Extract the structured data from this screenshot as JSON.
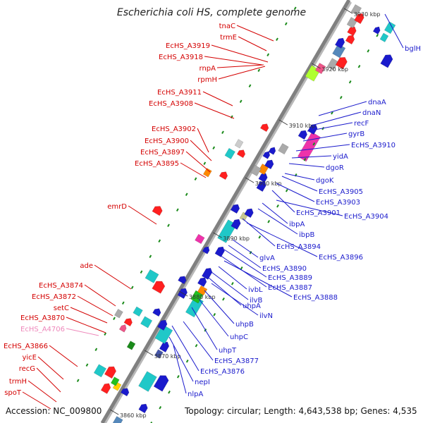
{
  "title": "Escherichia coli HS, complete genome",
  "accession": "Accession: NC_009800",
  "summary": "Topology: circular; Length: 4,643,538 bp; Genes: 4,535",
  "colors": {
    "forward_label": "#d40000",
    "reverse_label": "#1a1acc",
    "pseudo_label": "#ee88bb",
    "backbone": "#808080",
    "tick": "#1a8a1a"
  },
  "ticks": [
    "3860 kbp",
    "3870 kbp",
    "3880 kbp",
    "3890 kbp",
    "3900 kbp",
    "3910 kbp",
    "3920 kbp",
    "3930 kbp"
  ],
  "left_labels": [
    {
      "text": "tnaC",
      "style": "forward"
    },
    {
      "text": "trmE",
      "style": "forward"
    },
    {
      "text": "EcHS_A3919",
      "style": "forward"
    },
    {
      "text": "EcHS_A3918",
      "style": "forward"
    },
    {
      "text": "rnpA",
      "style": "forward"
    },
    {
      "text": "rpmH",
      "style": "forward"
    },
    {
      "text": "EcHS_A3911",
      "style": "forward"
    },
    {
      "text": "EcHS_A3908",
      "style": "forward"
    },
    {
      "text": "EcHS_A3902",
      "style": "forward"
    },
    {
      "text": "EcHS_A3900",
      "style": "forward"
    },
    {
      "text": "EcHS_A3897",
      "style": "forward"
    },
    {
      "text": "EcHS_A3895",
      "style": "forward"
    },
    {
      "text": "emrD",
      "style": "forward"
    },
    {
      "text": "ade",
      "style": "forward"
    },
    {
      "text": "EcHS_A3874",
      "style": "forward"
    },
    {
      "text": "EcHS_A3872",
      "style": "forward"
    },
    {
      "text": "setC",
      "style": "forward"
    },
    {
      "text": "EcHS_A3870",
      "style": "forward"
    },
    {
      "text": "EcHS_A4706",
      "style": "pseudo"
    },
    {
      "text": "EcHS_A3866",
      "style": "forward"
    },
    {
      "text": "yicE",
      "style": "forward"
    },
    {
      "text": "recG",
      "style": "forward"
    },
    {
      "text": "trmH",
      "style": "forward"
    },
    {
      "text": "spoT",
      "style": "forward"
    }
  ],
  "right_labels": [
    {
      "text": "bglH"
    },
    {
      "text": "dnaA"
    },
    {
      "text": "dnaN"
    },
    {
      "text": "recF"
    },
    {
      "text": "gyrB"
    },
    {
      "text": "EcHS_A3910"
    },
    {
      "text": "yidA"
    },
    {
      "text": "dgoR"
    },
    {
      "text": "dgoK"
    },
    {
      "text": "EcHS_A3905"
    },
    {
      "text": "EcHS_A3903"
    },
    {
      "text": "EcHS_A3901"
    },
    {
      "text": "EcHS_A3904"
    },
    {
      "text": "ibpA"
    },
    {
      "text": "ibpB"
    },
    {
      "text": "EcHS_A3894"
    },
    {
      "text": "EcHS_A3896"
    },
    {
      "text": "glvA"
    },
    {
      "text": "EcHS_A3890"
    },
    {
      "text": "EcHS_A3889"
    },
    {
      "text": "EcHS_A3887"
    },
    {
      "text": "EcHS_A3888"
    },
    {
      "text": "ivbL"
    },
    {
      "text": "ilvB"
    },
    {
      "text": "uhpA"
    },
    {
      "text": "ilvN"
    },
    {
      "text": "uhpB"
    },
    {
      "text": "uhpC"
    },
    {
      "text": "uhpT"
    },
    {
      "text": "EcHS_A3877"
    },
    {
      "text": "EcHS_A3876"
    },
    {
      "text": "nepI"
    },
    {
      "text": "nlpA"
    }
  ]
}
